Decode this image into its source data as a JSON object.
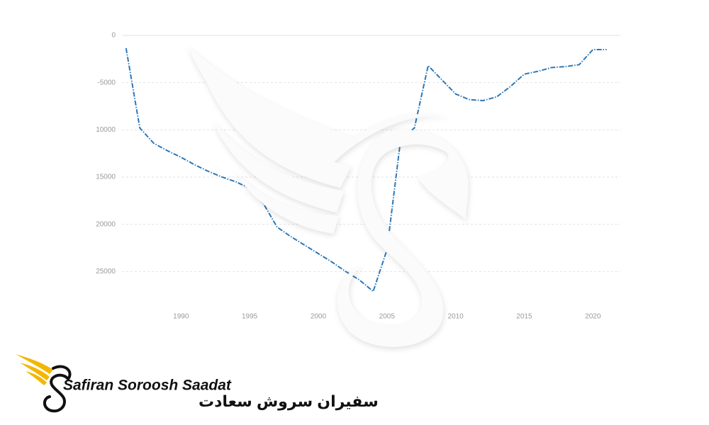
{
  "chart_data": {
    "type": "line",
    "x": [
      1986,
      1987,
      1988,
      1989,
      1990,
      1991,
      1992,
      1993,
      1994,
      1995,
      1996,
      1997,
      1998,
      1999,
      2000,
      2001,
      2002,
      2003,
      2004,
      2005,
      2006,
      2007,
      2008,
      2009,
      2010,
      2011,
      2012,
      2013,
      2014,
      2015,
      2016,
      2017,
      2018,
      2019,
      2020,
      2021
    ],
    "series": [
      {
        "color": "#2e78b7",
        "values": [
          -1350,
          -9800,
          -11400,
          -12200,
          -12900,
          -13700,
          -14400,
          -15000,
          -15500,
          -16200,
          -17800,
          -20300,
          -21300,
          -22200,
          -23100,
          -24000,
          -25000,
          -25900,
          -27100,
          -22700,
          -11000,
          -9800,
          -3200,
          -4700,
          -6200,
          -6800,
          -6900,
          -6500,
          -5400,
          -4100,
          -3800,
          -3400,
          -3300,
          -3100,
          -1500,
          -1500
        ]
      }
    ],
    "xlim": [
      1985.7,
      2022
    ],
    "xticks": [
      1990,
      1995,
      2000,
      2005,
      2010,
      2015,
      2020
    ],
    "ylim": [
      -28500,
      0
    ],
    "yticks": [
      0,
      {
        "value": -5000,
        "label": "-5000"
      },
      {
        "value": -10000,
        "label": "10000"
      },
      {
        "value": -15000,
        "label": "15000"
      },
      {
        "value": -20000,
        "label": "20000"
      },
      {
        "value": -25000,
        "label": "25000"
      }
    ],
    "grid": true
  },
  "logo": {
    "name_en": "Safiran Soroosh Saadat",
    "name_fa": "سفیران سروش سعادت"
  }
}
